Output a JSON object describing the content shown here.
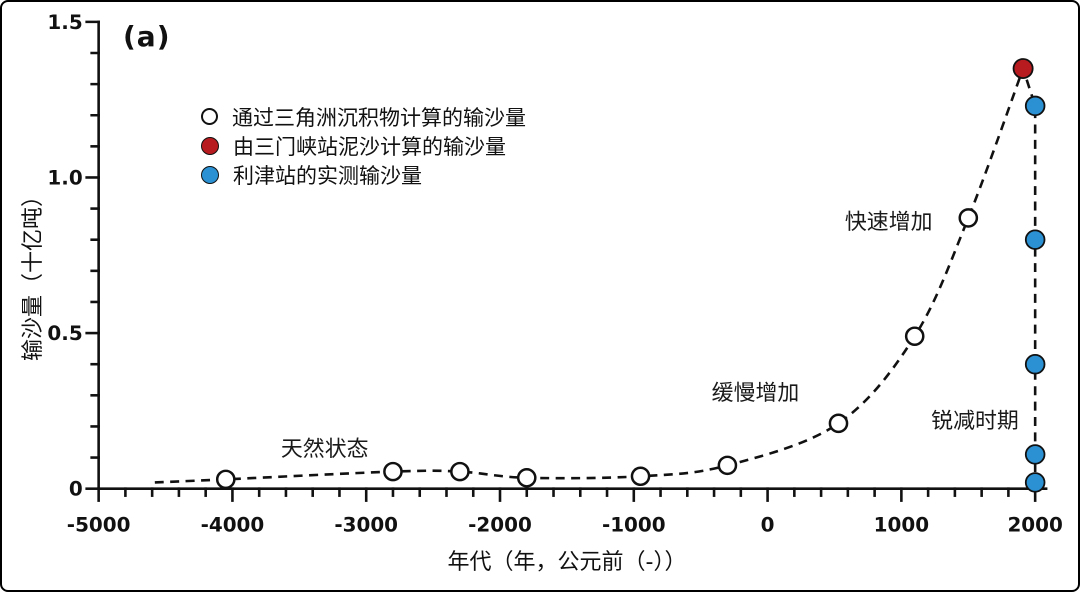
{
  "figure": {
    "panel_label": "(a)"
  },
  "chart_data": {
    "type": "scatter",
    "title": "(a)",
    "xlabel": "年代（年，公元前（-））",
    "ylabel": "输沙量（十亿吨）",
    "xlim": [
      -5000,
      2080
    ],
    "ylim": [
      0,
      1.5
    ],
    "x_ticks": [
      -5000,
      -4000,
      -3000,
      -2000,
      -1000,
      0,
      1000,
      2000
    ],
    "x_tick_labels": [
      "-5000",
      "-4000",
      "-3000",
      "-2000",
      "-1000",
      "0",
      "1000",
      "2000"
    ],
    "x_minor_step": 200,
    "y_ticks": [
      0,
      0.5,
      1.0,
      1.5
    ],
    "y_tick_labels": [
      "0",
      "0.5",
      "1.0",
      "1.5"
    ],
    "y_minor_step": 0.1,
    "grid": false,
    "legend_position": "upper-left-inside",
    "line_style": "dashed",
    "series": [
      {
        "name": "通过三角洲沉积物计算的输沙量",
        "marker": "open-circle",
        "fill": "#ffffff",
        "stroke": "#111111",
        "points": [
          [
            -4050,
            0.03
          ],
          [
            -2800,
            0.055
          ],
          [
            -2300,
            0.055
          ],
          [
            -1800,
            0.035
          ],
          [
            -950,
            0.04
          ],
          [
            -300,
            0.075
          ],
          [
            530,
            0.21
          ],
          [
            1100,
            0.49
          ],
          [
            1500,
            0.87
          ]
        ]
      },
      {
        "name": "由三门峡站泥沙计算的输沙量",
        "marker": "filled-circle",
        "fill": "#b71b1f",
        "stroke": "#111111",
        "points": [
          [
            1910,
            1.35
          ]
        ]
      },
      {
        "name": "利津站的实测输沙量",
        "marker": "filled-circle",
        "fill": "#2b91d2",
        "stroke": "#111111",
        "points": [
          [
            2000,
            1.23
          ],
          [
            2000,
            0.8
          ],
          [
            2000,
            0.4
          ],
          [
            2000,
            0.11
          ],
          [
            2000,
            0.02
          ]
        ]
      }
    ],
    "trend_line": {
      "style": "dashed",
      "points": [
        [
          -4580,
          0.02
        ],
        [
          -4050,
          0.03
        ],
        [
          -2800,
          0.055
        ],
        [
          -2300,
          0.055
        ],
        [
          -1800,
          0.035
        ],
        [
          -950,
          0.04
        ],
        [
          -300,
          0.075
        ],
        [
          530,
          0.21
        ],
        [
          1100,
          0.49
        ],
        [
          1500,
          0.87
        ],
        [
          1910,
          1.35
        ],
        [
          2000,
          1.23
        ],
        [
          2000,
          0.02
        ]
      ]
    },
    "annotations": [
      {
        "text": "天然状态",
        "x": -3310,
        "y": 0.13
      },
      {
        "text": "缓慢增加",
        "x": -90,
        "y": 0.31
      },
      {
        "text": "快速增加",
        "x": 905,
        "y": 0.86
      },
      {
        "text": "锐减时期",
        "x": 1550,
        "y": 0.22
      }
    ]
  },
  "legend": {
    "items": [
      {
        "label": "通过三角洲沉积物计算的输沙量",
        "marker": "open-circle",
        "color": "#ffffff"
      },
      {
        "label": "由三门峡站泥沙计算的输沙量",
        "marker": "filled-circle",
        "color": "#b71b1f"
      },
      {
        "label": "利津站的实测输沙量",
        "marker": "filled-circle",
        "color": "#2b91d2"
      }
    ]
  },
  "colors": {
    "axis": "#111111",
    "red": "#b71b1f",
    "blue": "#2b91d2",
    "text": "#1a1a1a",
    "background": "#ffffff"
  }
}
